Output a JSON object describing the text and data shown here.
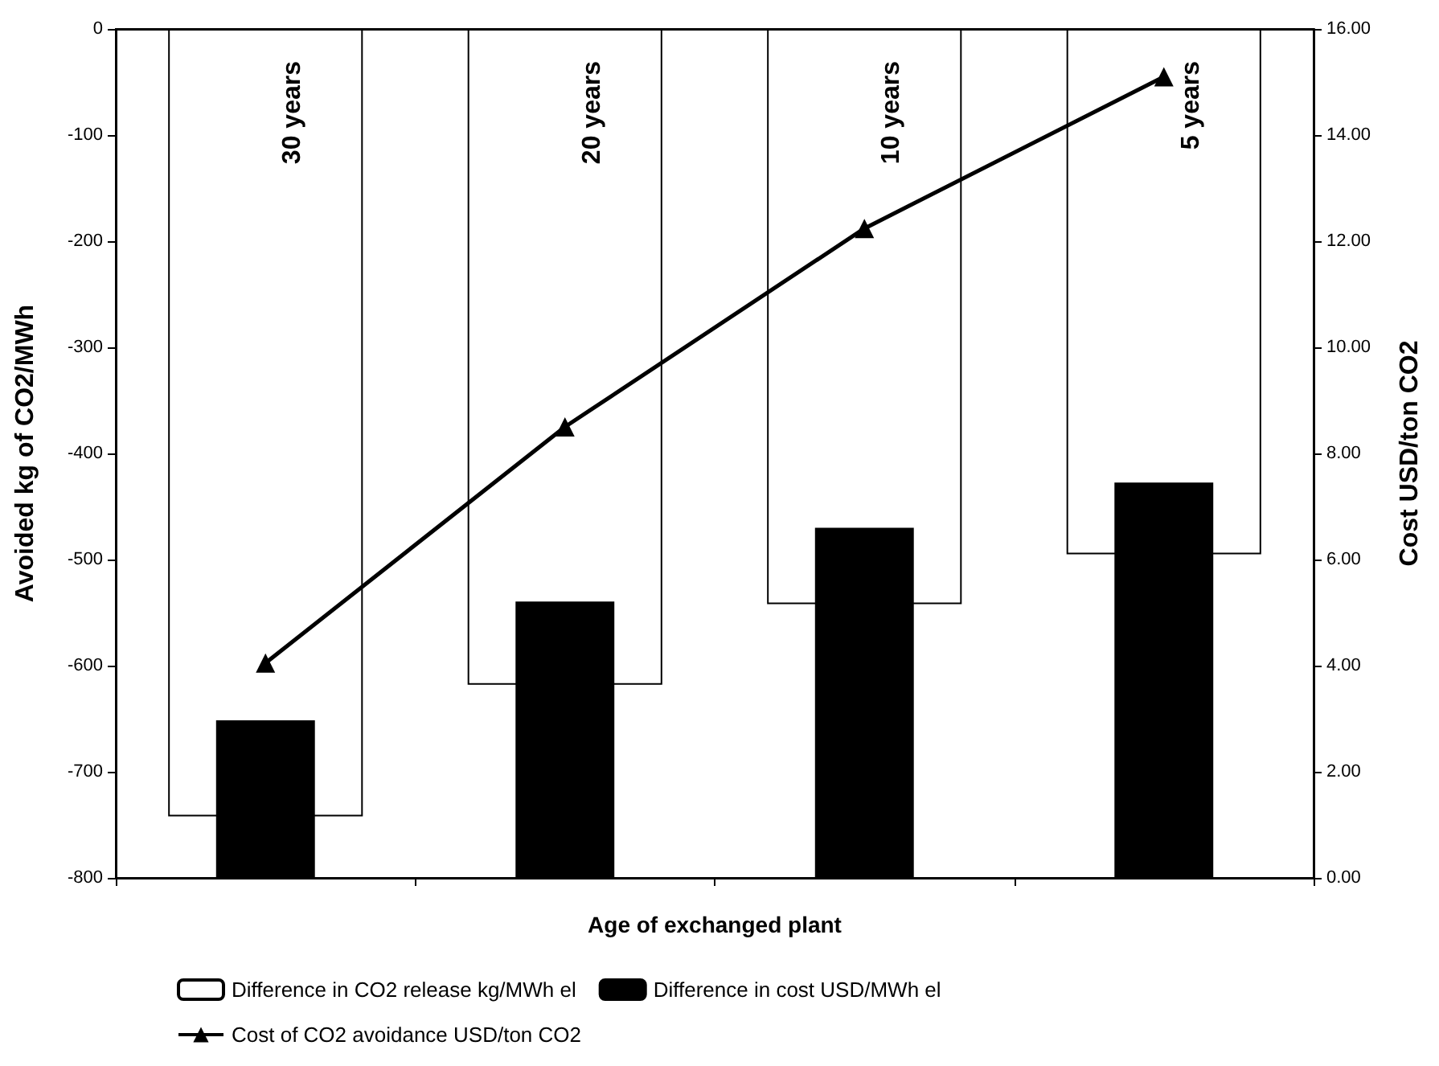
{
  "chart_data": {
    "type": "bar",
    "xlabel": "Age of exchanged plant",
    "ylabel": "Avoided kg of CO2/MWh",
    "y2label": "Cost USD/ton CO2",
    "categories": [
      "30 years",
      "20 years",
      "10 years",
      "5 years"
    ],
    "series": [
      {
        "name": "Difference in CO2 release kg/MWh el",
        "color": "#ffffff",
        "values": [
          -742,
          -618,
          -542,
          -495
        ]
      },
      {
        "name": "Difference in cost USD/MWh el",
        "axis": "y2",
        "color": "#000000",
        "values": [
          2.97,
          5.21,
          6.6,
          7.45
        ]
      },
      {
        "name": "Cost of CO2 avoidance USD/ton CO2",
        "type": "line",
        "axis": "y2",
        "color": "#000000",
        "values": [
          4.05,
          8.5,
          12.24,
          15.1
        ]
      }
    ],
    "ylim": [
      -800,
      0
    ],
    "yticks": [
      -800,
      -700,
      -600,
      -500,
      -400,
      -300,
      -200,
      -100,
      0
    ],
    "y2lim": [
      0,
      16
    ],
    "y2ticks": [
      {
        "value": 0,
        "label": "0.00"
      },
      {
        "value": 2,
        "label": "2.00"
      },
      {
        "value": 4,
        "label": "4.00"
      },
      {
        "value": 6,
        "label": "6.00"
      },
      {
        "value": 8,
        "label": "8.00"
      },
      {
        "value": 10,
        "label": "10.00"
      },
      {
        "value": 12,
        "label": "12.00"
      },
      {
        "value": 14,
        "label": "14.00"
      },
      {
        "value": 16,
        "label": "16.00"
      }
    ],
    "grid": false,
    "legend": "bottom",
    "marker": "triangle",
    "line_style": "solid"
  }
}
